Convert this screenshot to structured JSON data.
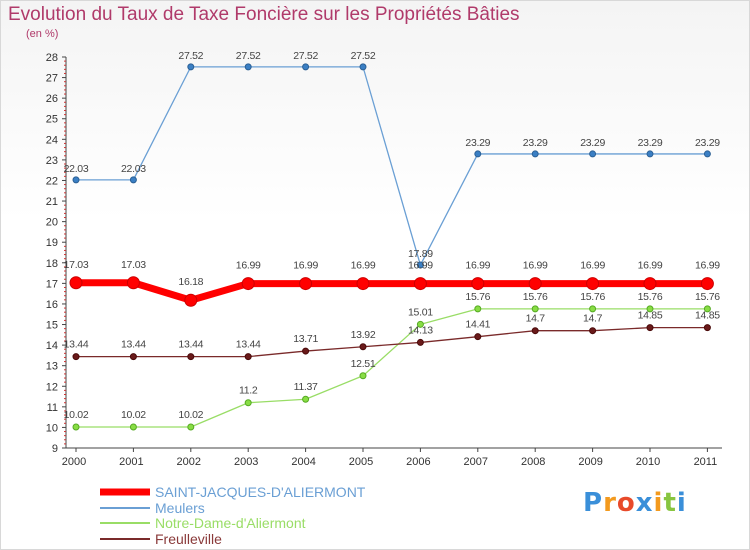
{
  "chart_data": {
    "type": "line",
    "title": "Evolution du Taux de Taxe Foncière sur les Propriétés Bâties",
    "subtitle": "(en %)",
    "x": [
      "2000",
      "2001",
      "2002",
      "2003",
      "2004",
      "2005",
      "2006",
      "2007",
      "2008",
      "2009",
      "2010",
      "2011"
    ],
    "ylim": [
      9,
      28
    ],
    "yticks": [
      "9",
      "10",
      "11",
      "12",
      "13",
      "14",
      "15",
      "16",
      "17",
      "18",
      "19",
      "20",
      "21",
      "22",
      "23",
      "24",
      "25",
      "26",
      "27",
      "28"
    ],
    "grid": false,
    "legend_position": "bottom-left",
    "series": [
      {
        "key": "saint-jacques",
        "name": "SAINT-JACQUES-D'ALIERMONT",
        "color": "#ff0000",
        "values": [
          17.03,
          17.03,
          16.18,
          16.99,
          16.99,
          16.99,
          16.99,
          16.99,
          16.99,
          16.99,
          16.99,
          16.99
        ],
        "labels": [
          "17.03",
          "17.03",
          "16.18",
          "16.99",
          "16.99",
          "16.99",
          "16.99",
          "16.99",
          "16.99",
          "16.99",
          "16.99",
          "16.99"
        ]
      },
      {
        "key": "meulers",
        "name": "Meulers",
        "color": "#6a9fd4",
        "values": [
          22.03,
          22.03,
          27.52,
          27.52,
          27.52,
          27.52,
          17.89,
          23.29,
          23.29,
          23.29,
          23.29,
          23.29
        ],
        "labels": [
          "22.03",
          "22.03",
          "27.52",
          "27.52",
          "27.52",
          "27.52",
          "17.89",
          "23.29",
          "23.29",
          "23.29",
          "23.29",
          "23.29"
        ]
      },
      {
        "key": "notre-dame",
        "name": "Notre-Dame-d'Aliermont",
        "color": "#99dd66",
        "values": [
          10.02,
          10.02,
          10.02,
          11.2,
          11.37,
          12.51,
          15.01,
          15.76,
          15.76,
          15.76,
          15.76,
          15.76
        ],
        "labels": [
          "10.02",
          "10.02",
          "10.02",
          "11.2",
          "11.37",
          "12.51",
          "15.01",
          "15.76",
          "15.76",
          "15.76",
          "15.76",
          "15.76"
        ]
      },
      {
        "key": "freulleville",
        "name": "Freulleville",
        "color": "#7a2a2a",
        "values": [
          13.44,
          13.44,
          13.44,
          13.44,
          13.71,
          13.92,
          14.13,
          14.41,
          14.7,
          14.7,
          14.85,
          14.85
        ],
        "labels": [
          "13.44",
          "13.44",
          "13.44",
          "13.44",
          "13.71",
          "13.92",
          "14.13",
          "14.41",
          "14.7",
          "14.7",
          "14.85",
          "14.85"
        ]
      }
    ]
  },
  "logo": {
    "text": [
      "P",
      "r",
      "o",
      "x",
      "i",
      "t",
      "i"
    ],
    "colors": [
      "#3a8fd9",
      "#f39a1e",
      "#e84a2a",
      "#3a8fd9",
      "#f39a1e",
      "#88c540",
      "#3a8fd9"
    ]
  }
}
